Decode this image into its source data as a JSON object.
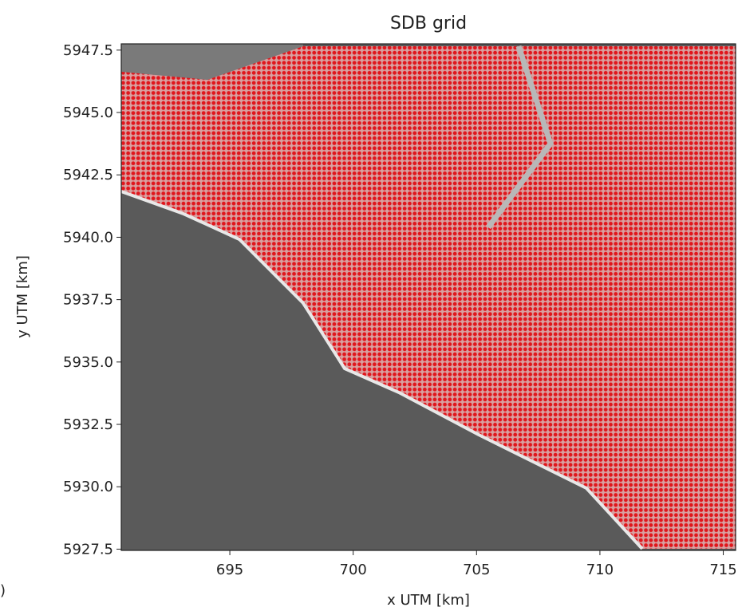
{
  "chart_data": {
    "type": "image",
    "title": "SDB grid",
    "x_label": "x UTM [km]",
    "y_label": "y UTM [km]",
    "xlim": [
      690.6,
      715.5
    ],
    "ylim": [
      5927.45,
      5947.75
    ],
    "xticks": [
      695,
      700,
      705,
      710,
      715
    ],
    "yticks": [
      {
        "value": 5927.5,
        "label": "5927.5"
      },
      {
        "value": 5930,
        "label": "5930.0"
      },
      {
        "value": 5932.5,
        "label": "5932.5"
      },
      {
        "value": 5935,
        "label": "5935.0"
      },
      {
        "value": 5937.5,
        "label": "5937.5"
      },
      {
        "value": 5940,
        "label": "5940.0"
      },
      {
        "value": 5942.5,
        "label": "5942.5"
      },
      {
        "value": 5945,
        "label": "5945.0"
      },
      {
        "value": 5947.5,
        "label": "5947.5"
      }
    ],
    "corner_text": ")"
  }
}
